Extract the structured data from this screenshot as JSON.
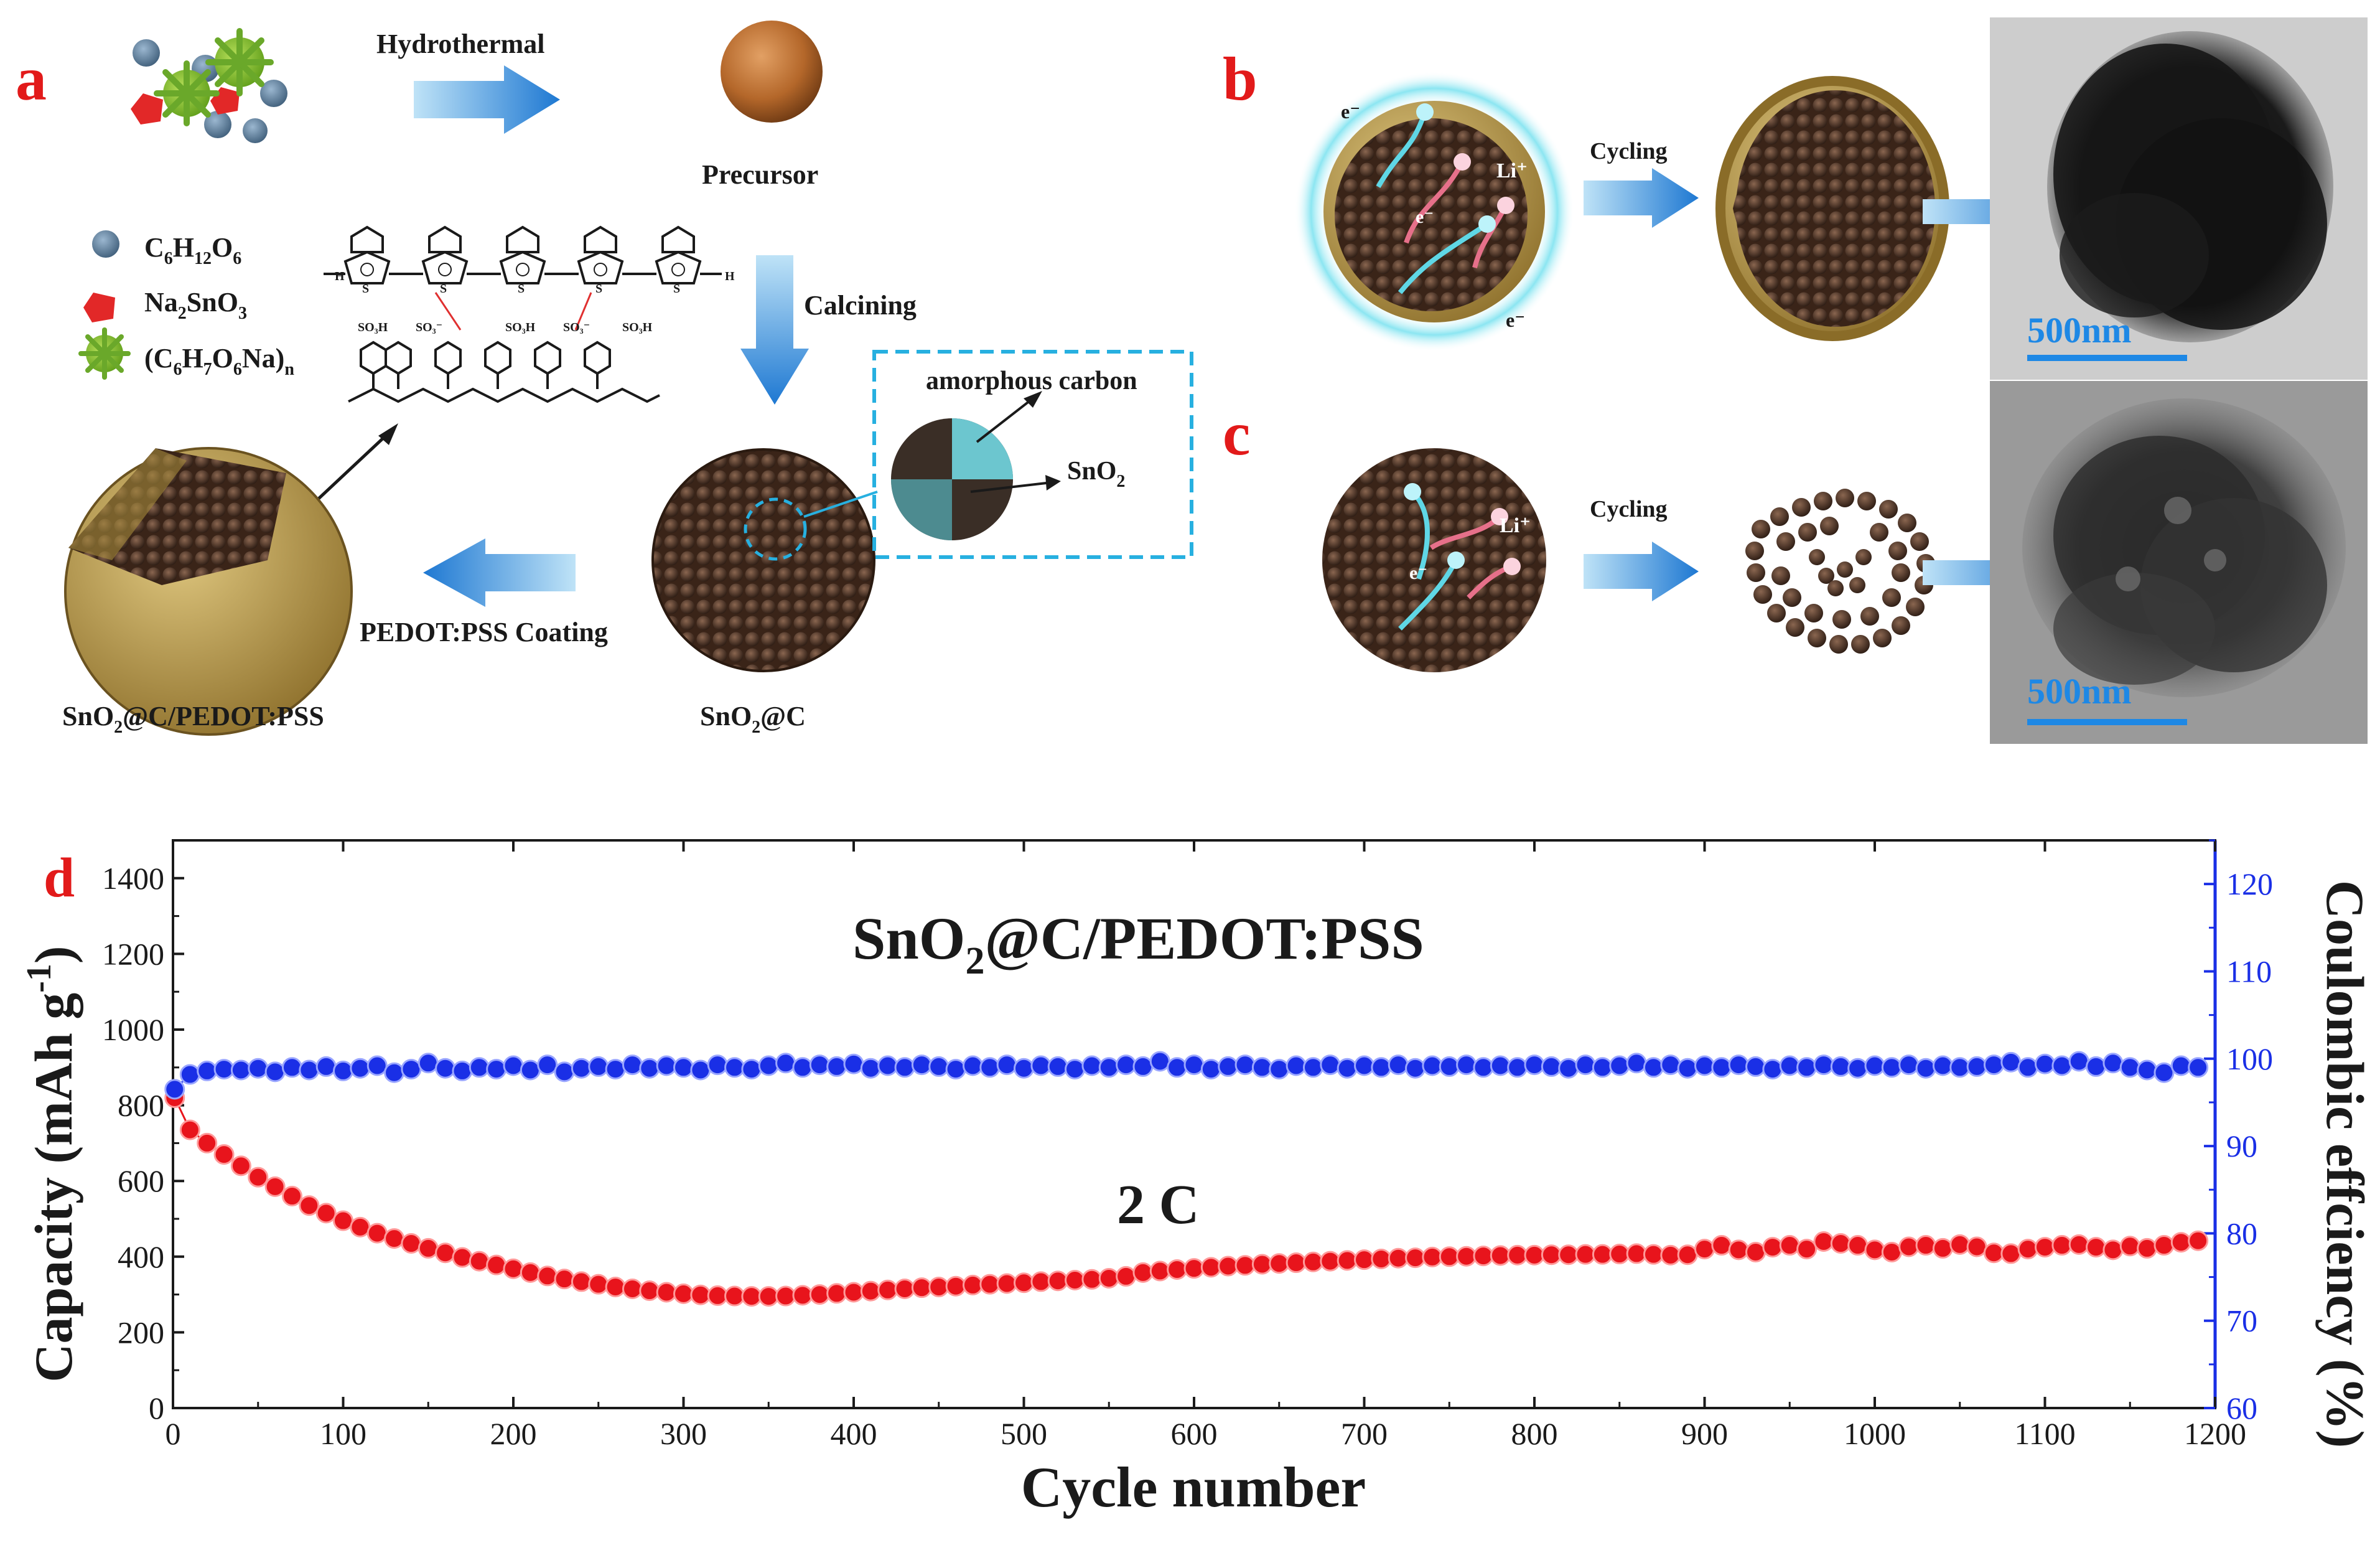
{
  "panels": {
    "a": {
      "label": "a",
      "hydrothermal": "Hydrothermal",
      "precursor": "Precursor",
      "calcining": "Calcining",
      "amorphous_carbon": "amorphous carbon",
      "sno2": "SnO",
      "sno2_sub": "2",
      "coating": "PEDOT:PSS Coating",
      "sno2c_label": "SnO",
      "sno2c_sub": "2",
      "sno2c_suffix": "@C",
      "final_label_a": "SnO",
      "final_label_sub": "2",
      "final_label_b": "@C/PEDOT:PSS",
      "legend": {
        "glucose": {
          "p1": "C",
          "s1": "6",
          "p2": "H",
          "s2": "12",
          "p3": "O",
          "s3": "6"
        },
        "stannate": {
          "p1": "Na",
          "s1": "2",
          "p2": "SnO",
          "s2": "3"
        },
        "alginate": {
          "p1": "(C",
          "s1": "6",
          "p2": "H",
          "s2": "7",
          "p3": "O",
          "s3": "6",
          "p4": "Na)",
          "s4": "n"
        }
      },
      "chem": {
        "so3h": "SO₃H",
        "so3m": "SO₃⁻",
        "s": "S",
        "h": "H",
        "o": "O"
      }
    },
    "b": {
      "label": "b",
      "cycling": "Cycling",
      "li": "Li⁺",
      "e": "e⁻",
      "scale": "500nm"
    },
    "c": {
      "label": "c",
      "cycling": "Cycling",
      "li": "Li⁺",
      "e": "e⁻",
      "scale": "500nm"
    }
  },
  "chart_data": {
    "type": "scatter",
    "panel_label": "d",
    "title_prefix": "SnO",
    "title_sub": "2",
    "title_suffix": "@C/PEDOT:PSS",
    "annotation": "2 C",
    "xlabel": "Cycle number",
    "ylabel_left": "Capacity (mAh g",
    "ylabel_left_sup": "-1",
    "ylabel_left_end": ")",
    "ylabel_right": "Coulombic effciency (%)",
    "xlim": [
      0,
      1200
    ],
    "ylim_left": [
      0,
      1500
    ],
    "ylim_right": [
      60,
      125
    ],
    "x_ticks": [
      "0",
      "100",
      "200",
      "300",
      "400",
      "500",
      "600",
      "700",
      "800",
      "900",
      "1000",
      "1100",
      "1200"
    ],
    "y_left_ticks": [
      "0",
      "200",
      "400",
      "600",
      "800",
      "1000",
      "1200",
      "1400"
    ],
    "y_right_ticks": [
      "60",
      "70",
      "80",
      "90",
      "100",
      "110",
      "120"
    ],
    "series": [
      {
        "name": "Capacity",
        "axis": "left",
        "color": "#e8141c",
        "x": [
          1,
          10,
          20,
          30,
          40,
          50,
          60,
          70,
          80,
          90,
          100,
          110,
          120,
          130,
          140,
          150,
          160,
          170,
          180,
          190,
          200,
          210,
          220,
          230,
          240,
          250,
          260,
          270,
          280,
          290,
          300,
          310,
          320,
          330,
          340,
          350,
          360,
          370,
          380,
          390,
          400,
          410,
          420,
          430,
          440,
          450,
          460,
          470,
          480,
          490,
          500,
          510,
          520,
          530,
          540,
          550,
          560,
          570,
          580,
          590,
          600,
          610,
          620,
          630,
          640,
          650,
          660,
          670,
          680,
          690,
          700,
          710,
          720,
          730,
          740,
          750,
          760,
          770,
          780,
          790,
          800,
          810,
          820,
          830,
          840,
          850,
          860,
          870,
          880,
          890,
          900,
          910,
          920,
          930,
          940,
          950,
          960,
          970,
          980,
          990,
          1000,
          1010,
          1020,
          1030,
          1040,
          1050,
          1060,
          1070,
          1080,
          1090,
          1100,
          1110,
          1120,
          1130,
          1140,
          1150,
          1160,
          1170,
          1180,
          1190
        ],
        "values": [
          820,
          735,
          700,
          670,
          640,
          610,
          585,
          560,
          535,
          515,
          495,
          478,
          462,
          448,
          435,
          422,
          410,
          398,
          388,
          378,
          368,
          358,
          349,
          341,
          334,
          327,
          320,
          315,
          310,
          306,
          302,
          299,
          297,
          296,
          295,
          295,
          296,
          298,
          300,
          303,
          306,
          309,
          312,
          315,
          318,
          320,
          322,
          325,
          327,
          329,
          331,
          334,
          336,
          338,
          340,
          343,
          348,
          358,
          362,
          366,
          369,
          372,
          375,
          377,
          380,
          382,
          384,
          386,
          388,
          390,
          392,
          394,
          396,
          397,
          399,
          400,
          401,
          402,
          403,
          404,
          404,
          405,
          405,
          406,
          406,
          407,
          408,
          406,
          404,
          405,
          420,
          430,
          418,
          412,
          425,
          430,
          420,
          440,
          435,
          430,
          418,
          412,
          426,
          430,
          422,
          432,
          426,
          410,
          408,
          420,
          425,
          430,
          432,
          425,
          418,
          428,
          422,
          430,
          438,
          442
        ]
      },
      {
        "name": "Coulombic efficiency",
        "axis": "right",
        "color": "#1a2fe6",
        "x": [
          1,
          10,
          20,
          30,
          40,
          50,
          60,
          70,
          80,
          90,
          100,
          110,
          120,
          130,
          140,
          150,
          160,
          170,
          180,
          190,
          200,
          210,
          220,
          230,
          240,
          250,
          260,
          270,
          280,
          290,
          300,
          310,
          320,
          330,
          340,
          350,
          360,
          370,
          380,
          390,
          400,
          410,
          420,
          430,
          440,
          450,
          460,
          470,
          480,
          490,
          500,
          510,
          520,
          530,
          540,
          550,
          560,
          570,
          580,
          590,
          600,
          610,
          620,
          630,
          640,
          650,
          660,
          670,
          680,
          690,
          700,
          710,
          720,
          730,
          740,
          750,
          760,
          770,
          780,
          790,
          800,
          810,
          820,
          830,
          840,
          850,
          860,
          870,
          880,
          890,
          900,
          910,
          920,
          930,
          940,
          950,
          960,
          970,
          980,
          990,
          1000,
          1010,
          1020,
          1030,
          1040,
          1050,
          1060,
          1070,
          1080,
          1090,
          1100,
          1110,
          1120,
          1130,
          1140,
          1150,
          1160,
          1170,
          1180,
          1190
        ],
        "values": [
          96.5,
          98.2,
          98.6,
          98.8,
          98.7,
          98.9,
          98.5,
          99.0,
          98.7,
          99.1,
          98.6,
          98.9,
          99.2,
          98.4,
          98.8,
          99.5,
          98.9,
          98.6,
          99.0,
          98.8,
          99.2,
          98.7,
          99.3,
          98.5,
          98.9,
          99.1,
          98.8,
          99.3,
          98.9,
          99.2,
          99.0,
          98.7,
          99.3,
          99.0,
          98.8,
          99.2,
          99.5,
          99.0,
          99.3,
          99.1,
          99.4,
          98.9,
          99.2,
          99.0,
          99.3,
          99.1,
          98.8,
          99.2,
          99.0,
          99.3,
          98.9,
          99.2,
          99.1,
          98.8,
          99.2,
          99.0,
          99.3,
          99.1,
          99.7,
          99.0,
          99.3,
          98.8,
          99.1,
          99.3,
          99.0,
          98.8,
          99.2,
          99.0,
          99.3,
          98.9,
          99.2,
          99.0,
          99.3,
          98.9,
          99.2,
          99.1,
          99.3,
          99.0,
          99.2,
          99.0,
          99.3,
          99.1,
          98.9,
          99.3,
          99.0,
          99.2,
          99.5,
          99.0,
          99.3,
          98.9,
          99.2,
          99.0,
          99.3,
          99.1,
          98.8,
          99.2,
          99.0,
          99.3,
          99.1,
          98.9,
          99.2,
          99.0,
          99.3,
          98.9,
          99.2,
          99.0,
          99.1,
          99.3,
          99.6,
          99.0,
          99.4,
          99.2,
          99.7,
          99.1,
          99.5,
          99.0,
          98.7,
          98.4,
          99.2,
          99.0
        ]
      }
    ]
  }
}
